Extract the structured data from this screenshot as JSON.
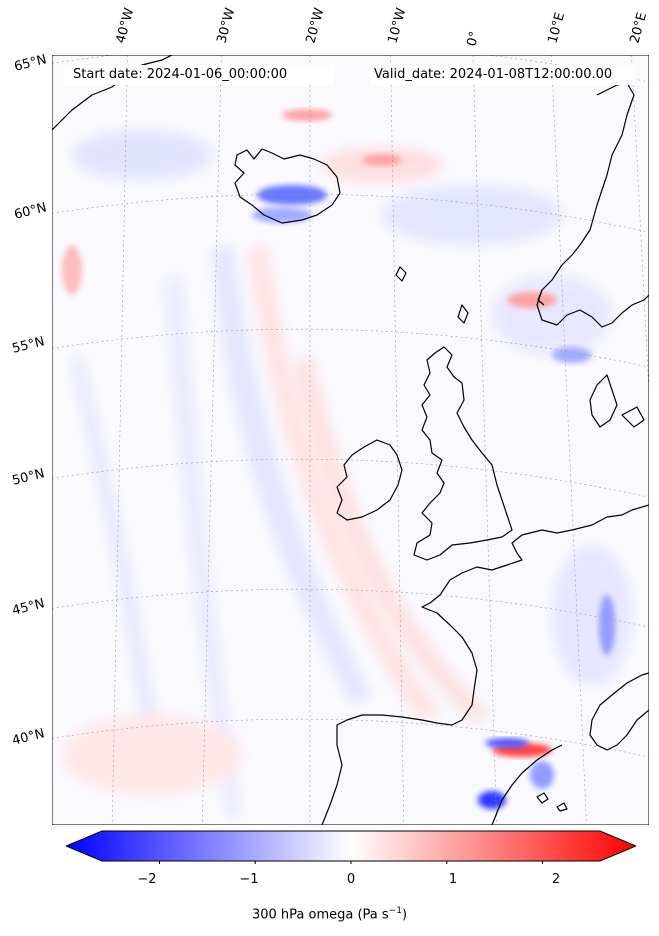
{
  "map": {
    "start_label": "Start date: 2024-01-06_00:00:00",
    "valid_label": "Valid_date: 2024-01-08T12:00:00.00",
    "lon_labels": [
      "40°W",
      "30°W",
      "20°W",
      "10°W",
      "0°",
      "10°E",
      "20°E"
    ],
    "lat_labels": [
      "65°N",
      "60°N",
      "55°N",
      "50°N",
      "45°N",
      "40°N"
    ],
    "colorbar": {
      "label": "300 hPa omega (Pa s",
      "label_sup": "−1",
      "label_end": ")",
      "ticks": [
        "−2",
        "−1",
        "0",
        "1",
        "2"
      ],
      "range": [
        -2.6,
        2.6
      ],
      "colors": {
        "negative": "#0000ff",
        "zero": "#ffffff",
        "positive": "#ff0000"
      }
    }
  }
}
